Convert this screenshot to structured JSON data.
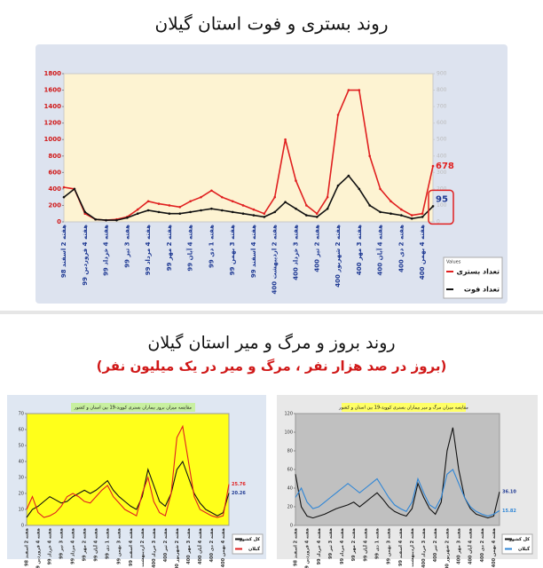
{
  "section_title": "روند بروز و مرگ و میر استان گیلان",
  "section_subtitle": "(بروز در صد هزار نفر ، مرگ و میر در یک میلیون نفر)",
  "chart_data": [
    {
      "type": "line",
      "title": "روند بستری و فوت استان گیلان",
      "legend_title": "Values",
      "categories": [
        "هفته 2 اسفند 98",
        null,
        "هفته 4 فروردین 99",
        null,
        "هفته 4 خرداد 99",
        null,
        "هفته 3 تیر 99",
        null,
        "هفته 4 مرداد 99",
        null,
        "هفته 2 مهر 99",
        null,
        "هفته 4 آبان 99",
        null,
        "هفته 1 دی 99",
        null,
        "هفته 3 بهمن 99",
        null,
        "هفته 4 اسفند 99",
        null,
        "هفته 2 اردیبهشت 400",
        null,
        "هفته 3 خرداد 400",
        null,
        "هفته 2 تیر 400",
        null,
        "هفته 2 شهریور 400",
        null,
        "هفته 3 مهر 400",
        null,
        "هفته 4 آبان 400",
        null,
        "هفته 2 دی 400",
        null,
        "هفته 4 بهمن 400",
        null
      ],
      "series": [
        {
          "name": "تعداد بستری",
          "color": "#e02020",
          "values": [
            420,
            400,
            100,
            30,
            20,
            30,
            60,
            150,
            250,
            220,
            200,
            180,
            250,
            300,
            380,
            300,
            250,
            200,
            150,
            100,
            300,
            1000,
            500,
            200,
            100,
            300,
            1300,
            1600,
            1600,
            800,
            400,
            250,
            150,
            80,
            100,
            678
          ]
        },
        {
          "name": "تعداد فوت",
          "color": "#111111",
          "axis": "y2",
          "values": [
            150,
            200,
            60,
            15,
            10,
            10,
            25,
            50,
            70,
            60,
            50,
            50,
            60,
            70,
            80,
            70,
            60,
            50,
            40,
            30,
            60,
            120,
            80,
            40,
            30,
            80,
            220,
            280,
            200,
            100,
            60,
            50,
            40,
            20,
            30,
            95
          ]
        }
      ],
      "ylim": [
        0,
        1800
      ],
      "yticks": [
        0,
        200,
        400,
        600,
        800,
        1000,
        1200,
        1400,
        1600,
        1800
      ],
      "y2lim": [
        0,
        900
      ],
      "y2ticks": [
        0,
        100,
        200,
        300,
        400,
        500,
        600,
        700,
        800,
        900
      ],
      "grid": false
    },
    {
      "type": "line",
      "title": "مقایسه میزان بروز بیماران بستری کووید-19 بین استان و کشور",
      "categories": [
        "هفته 2 اسفند 98",
        null,
        "هفته 4 فروردین 99",
        null,
        "هفته 4 خرداد 99",
        null,
        "هفته 3 تیر 99",
        null,
        "هفته 4 مرداد 99",
        null,
        "هفته 2 مهر 99",
        null,
        "هفته 4 آبان 99",
        null,
        "هفته 1 دی 99",
        null,
        "هفته 3 بهمن 99",
        null,
        "هفته 4 اسفند 99",
        null,
        "هفته 2 اردیبهشت 400",
        null,
        "هفته 3 خرداد 400",
        null,
        "هفته 2 تیر 400",
        null,
        "هفته 2 شهریور 400",
        null,
        "هفته 3 مهر 400",
        null,
        "هفته 4 آبان 400",
        null,
        "هفته 2 دی 400",
        null,
        "هفته 4 بهمن 400",
        null
      ],
      "series": [
        {
          "name": "کل کشور",
          "color": "#111111",
          "values": [
            5,
            10,
            12,
            15,
            18,
            16,
            14,
            15,
            18,
            20,
            22,
            20,
            22,
            25,
            28,
            22,
            18,
            15,
            12,
            10,
            18,
            35,
            25,
            15,
            12,
            20,
            35,
            40,
            30,
            20,
            14,
            10,
            8,
            6,
            8,
            20.26
          ]
        },
        {
          "name": "گیلان",
          "color": "#e02020",
          "values": [
            10,
            18,
            8,
            5,
            6,
            8,
            12,
            18,
            20,
            18,
            15,
            14,
            18,
            22,
            25,
            18,
            14,
            10,
            8,
            6,
            20,
            30,
            15,
            8,
            6,
            20,
            55,
            62,
            40,
            18,
            10,
            8,
            6,
            5,
            6,
            25.76
          ]
        }
      ],
      "ylim": [
        0,
        70
      ],
      "yticks": [
        0,
        10,
        20,
        30,
        40,
        50,
        60,
        70
      ],
      "grid": false
    },
    {
      "type": "line",
      "title": "مقایسه میزان مرگ و میر بیماران بستری کووید-19 بین استان و کشور",
      "categories": [
        "هفته 2 اسفند 98",
        null,
        "هفته 4 فروردین 99",
        null,
        "هفته 4 خرداد 99",
        null,
        "هفته 3 تیر 99",
        null,
        "هفته 4 مرداد 99",
        null,
        "هفته 2 مهر 99",
        null,
        "هفته 4 آبان 99",
        null,
        "هفته 1 دی 99",
        null,
        "هفته 3 بهمن 99",
        null,
        "هفته 4 اسفند 99",
        null,
        "هفته 2 اردیبهشت 400",
        null,
        "هفته 3 خرداد 400",
        null,
        "هفته 2 تیر 400",
        null,
        "هفته 2 شهریور 400",
        null,
        "هفته 3 مهر 400",
        null,
        "هفته 4 آبان 400",
        null,
        "هفته 2 دی 400",
        null,
        "هفته 4 بهمن 400",
        null
      ],
      "series": [
        {
          "name": "کل کشور",
          "color": "#111111",
          "values": [
            55,
            20,
            10,
            8,
            10,
            12,
            15,
            18,
            20,
            22,
            25,
            20,
            25,
            30,
            35,
            28,
            20,
            15,
            12,
            10,
            18,
            45,
            30,
            18,
            12,
            25,
            80,
            105,
            60,
            30,
            18,
            12,
            10,
            8,
            10,
            36.1
          ],
          "value_labels": [
            null,
            null,
            null,
            null,
            null,
            null,
            null,
            null,
            null,
            null,
            null,
            null,
            null,
            null,
            null,
            null,
            null,
            null,
            null,
            null,
            null,
            null,
            null,
            null,
            null,
            null,
            null,
            null,
            null,
            null,
            null,
            null,
            null,
            null,
            null,
            "36.10"
          ]
        },
        {
          "name": "گیلان",
          "color": "#2f86d6",
          "values": [
            30,
            40,
            25,
            18,
            20,
            25,
            30,
            35,
            40,
            45,
            40,
            35,
            40,
            45,
            50,
            40,
            30,
            22,
            18,
            15,
            25,
            50,
            35,
            22,
            18,
            30,
            55,
            60,
            45,
            30,
            20,
            15,
            12,
            10,
            12,
            15.82
          ]
        }
      ],
      "ylim": [
        0,
        120
      ],
      "yticks": [
        0,
        20,
        40,
        60,
        80,
        100,
        120
      ],
      "grid": false
    }
  ]
}
